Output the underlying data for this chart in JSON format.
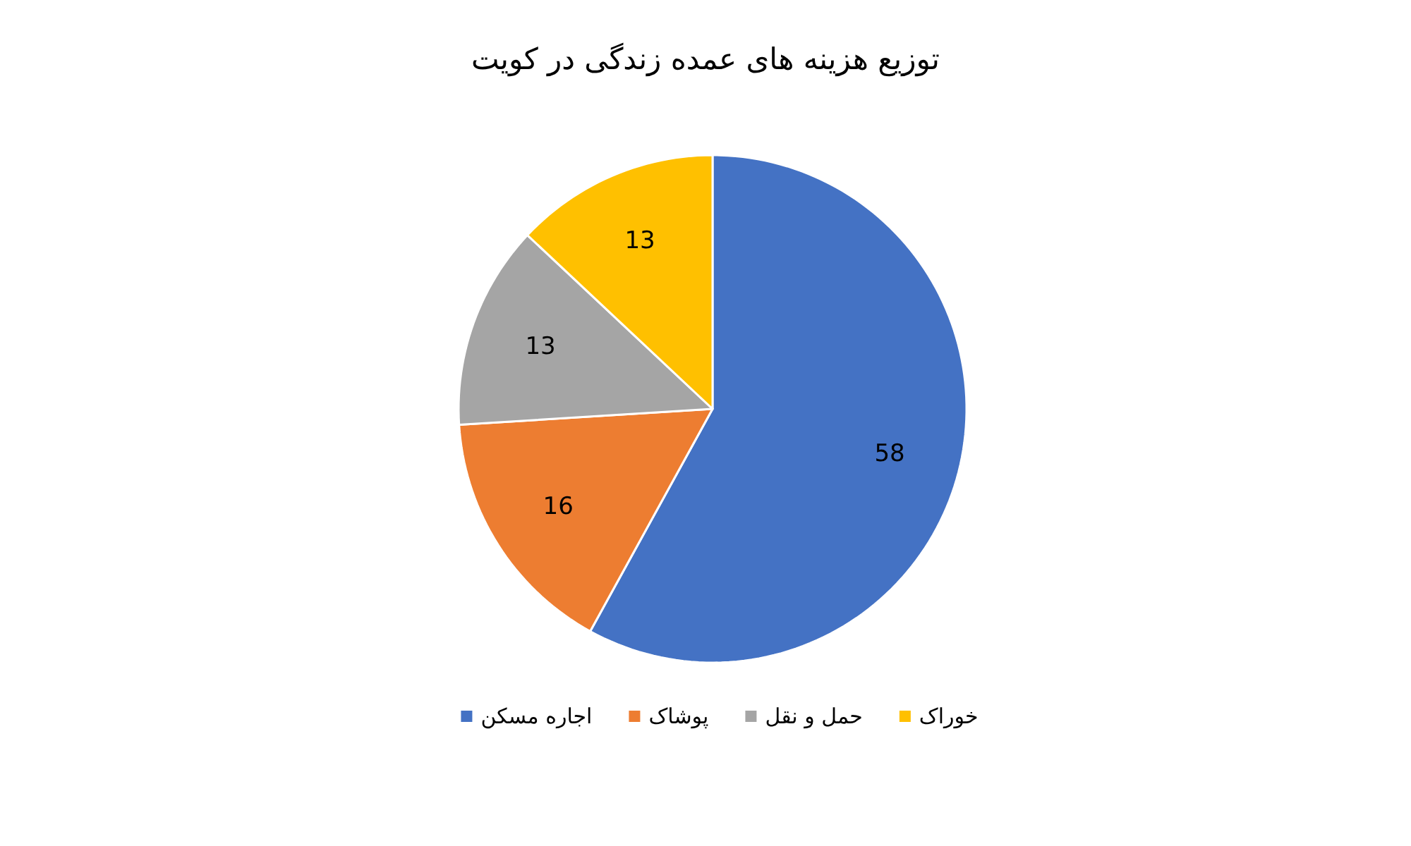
{
  "chart_data": {
    "type": "pie",
    "title": "توزیع هزینه های عمده زندگی در کویت",
    "categories": [
      "اجاره مسکن",
      "پوشاک",
      "حمل و نقل",
      "خوراک"
    ],
    "values": [
      58,
      16,
      13,
      13
    ],
    "colors": [
      "#4472c4",
      "#ed7d31",
      "#a5a5a5",
      "#ffc000"
    ],
    "data_labels": true,
    "legend": "bottom"
  }
}
